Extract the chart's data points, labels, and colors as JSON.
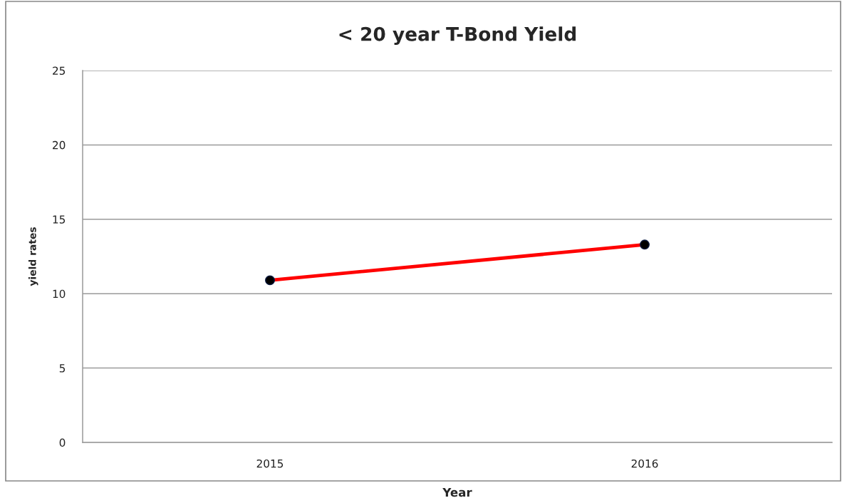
{
  "chart_data": {
    "type": "line",
    "title": "< 20 year T-Bond Yield",
    "xlabel": "Year",
    "ylabel": "yield rates",
    "categories": [
      "2015",
      "2016"
    ],
    "series": [
      {
        "color": "#ff0000",
        "values": [
          10.9,
          13.3
        ]
      }
    ],
    "ylim": [
      0,
      25
    ],
    "yticks": [
      0,
      5,
      10,
      15,
      20,
      25
    ],
    "grid": "y",
    "marker": "circle",
    "line_style": "solid"
  }
}
